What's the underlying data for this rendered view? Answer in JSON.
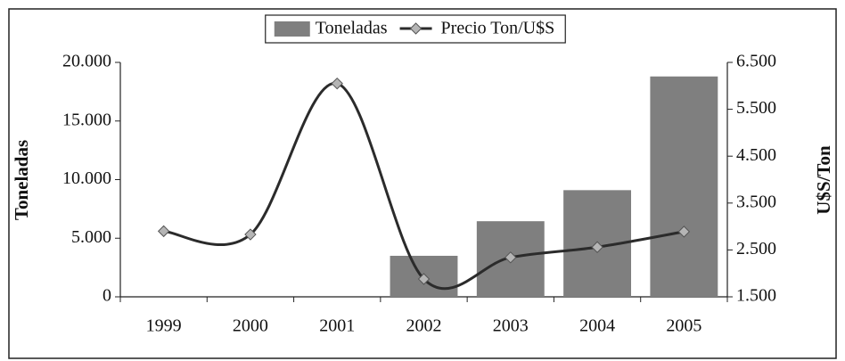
{
  "chart_data": {
    "type": "bar",
    "categories": [
      "1999",
      "2000",
      "2001",
      "2002",
      "2003",
      "2004",
      "2005"
    ],
    "series": [
      {
        "name": "Toneladas",
        "type": "bar",
        "color": "#7f7f7f",
        "values": [
          0,
          0,
          0,
          3500,
          6450,
          9100,
          18800
        ]
      },
      {
        "name": "Precio Ton/U$S",
        "type": "line",
        "axis": "y2",
        "color": "#2b2b2b",
        "marker_color": "#b5b5b5",
        "values": [
          2900,
          2830,
          6050,
          1880,
          2340,
          2560,
          2890
        ]
      }
    ],
    "ylabel": "Toneladas",
    "y2label": "U$S/Ton",
    "ylim": [
      0,
      20000
    ],
    "yticks": [
      0,
      {
        "value": 5000,
        "label": "5.000"
      },
      {
        "value": 10000,
        "label": "10.000"
      },
      {
        "value": 15000,
        "label": "15.000"
      },
      {
        "value": 20000,
        "label": "20.000"
      }
    ],
    "y2lim": [
      1500,
      6500
    ],
    "y2ticks": [
      {
        "value": 1500,
        "label": "1.500"
      },
      {
        "value": 2500,
        "label": "2.500"
      },
      {
        "value": 3500,
        "label": "3.500"
      },
      {
        "value": 4500,
        "label": "4.500"
      },
      {
        "value": 5500,
        "label": "5.500"
      },
      {
        "value": 6500,
        "label": "6.500"
      }
    ],
    "legend": "top",
    "smooth": true
  }
}
